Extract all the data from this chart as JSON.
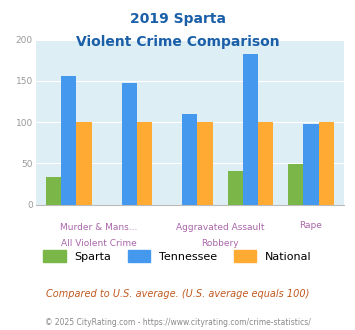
{
  "title_line1": "2019 Sparta",
  "title_line2": "Violent Crime Comparison",
  "categories": [
    "All Violent Crime",
    "Murder & Mans...",
    "Robbery",
    "Aggravated Assault",
    "Rape"
  ],
  "sparta": [
    33,
    0,
    0,
    41,
    49
  ],
  "tennessee": [
    156,
    147,
    110,
    183,
    98
  ],
  "national": [
    100,
    100,
    100,
    100,
    100
  ],
  "sparta_color": "#7ab648",
  "tennessee_color": "#4499ee",
  "national_color": "#ffaa33",
  "bg_color": "#ddeef4",
  "ylim": [
    0,
    200
  ],
  "yticks": [
    0,
    50,
    100,
    150,
    200
  ],
  "subtitle_note": "Compared to U.S. average. (U.S. average equals 100)",
  "footer": "© 2025 CityRating.com - https://www.cityrating.com/crime-statistics/",
  "title_color": "#1a5fa8",
  "subtitle_color": "#c05a20",
  "footer_color": "#888888",
  "xlabel_top_color": "#aa66aa",
  "xlabel_bot_color": "#aa66aa",
  "ylabel_color": "#999999"
}
